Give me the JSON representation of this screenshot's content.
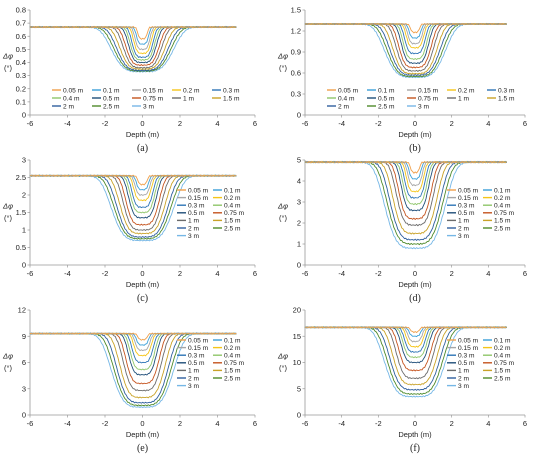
{
  "figure": {
    "series_names": [
      "0.05 m",
      "0.1 m",
      "0.15 m",
      "0.2 m",
      "0.3 m",
      "0.4 m",
      "0.5 m",
      "0.75 m",
      "1 m",
      "1.5 m",
      "2 m",
      "2.5 m",
      "3 m"
    ],
    "series_colors": [
      "#f0a04b",
      "#3aa0d8",
      "#a6a6a6",
      "#f5c518",
      "#2e75b6",
      "#8fc66a",
      "#1f4e79",
      "#c5541f",
      "#6b6b6b",
      "#c9a227",
      "#2f5f9e",
      "#4f8a2a",
      "#76b7e6"
    ],
    "half_widths_m": [
      0.28,
      0.36,
      0.44,
      0.52,
      0.62,
      0.72,
      0.82,
      0.98,
      1.12,
      1.32,
      1.5,
      1.66,
      1.82
    ]
  },
  "chart_data": [
    {
      "type": "line",
      "panel_label": "(a)",
      "xlabel": "Depth (m)",
      "ylabel": "Δφ",
      "yunit": "(°)",
      "xlim": [
        -6,
        6
      ],
      "ylim": [
        0,
        0.8
      ],
      "xticks": [
        "-6",
        "-4",
        "-2",
        "0",
        "2",
        "4",
        "6"
      ],
      "yticks": [
        "0",
        "0.1",
        "0.2",
        "0.3",
        "0.4",
        "0.5",
        "0.6",
        "0.7",
        "0.8"
      ],
      "x_range": [
        -6,
        5
      ],
      "baseline": 0.67,
      "minima": [
        0.58,
        0.54,
        0.5,
        0.47,
        0.44,
        0.42,
        0.4,
        0.38,
        0.36,
        0.35,
        0.34,
        0.335,
        0.33
      ],
      "legend_columns": 5,
      "legend_position": "lower-center"
    },
    {
      "type": "line",
      "panel_label": "(b)",
      "xlabel": "Depth (m)",
      "ylabel": "Δφ",
      "yunit": "(°)",
      "xlim": [
        -6,
        6
      ],
      "ylim": [
        0,
        1.5
      ],
      "xticks": [
        "-6",
        "-4",
        "-2",
        "0",
        "2",
        "4",
        "6"
      ],
      "yticks": [
        "0",
        "0.3",
        "0.6",
        "0.9",
        "1.2",
        "1.5"
      ],
      "x_range": [
        -6,
        5
      ],
      "baseline": 1.3,
      "minima": [
        1.18,
        1.1,
        1.02,
        0.96,
        0.88,
        0.8,
        0.74,
        0.68,
        0.63,
        0.59,
        0.57,
        0.55,
        0.54
      ],
      "legend_columns": 5,
      "legend_position": "lower-center"
    },
    {
      "type": "line",
      "panel_label": "(c)",
      "xlabel": "Depth (m)",
      "ylabel": "Δφ",
      "yunit": "(°)",
      "xlim": [
        -6,
        6
      ],
      "ylim": [
        0,
        3
      ],
      "xticks": [
        "-6",
        "-4",
        "-2",
        "0",
        "2",
        "4",
        "6"
      ],
      "yticks": [
        "0",
        "0.5",
        "1",
        "1.5",
        "2",
        "2.5",
        "3"
      ],
      "x_range": [
        -6,
        5
      ],
      "baseline": 2.55,
      "minima": [
        2.3,
        2.15,
        2.0,
        1.85,
        1.65,
        1.5,
        1.35,
        1.15,
        1.0,
        0.9,
        0.8,
        0.75,
        0.7
      ],
      "legend_columns": 2,
      "legend_position": "lower-right"
    },
    {
      "type": "line",
      "panel_label": "(d)",
      "xlabel": "Depth (m)",
      "ylabel": "Δφ",
      "yunit": "(°)",
      "xlim": [
        -6,
        6
      ],
      "ylim": [
        0,
        5
      ],
      "xticks": [
        "-6",
        "-4",
        "-2",
        "0",
        "2",
        "4",
        "6"
      ],
      "yticks": [
        "0",
        "1",
        "2",
        "3",
        "4",
        "5"
      ],
      "x_range": [
        -6,
        5
      ],
      "baseline": 4.9,
      "minima": [
        4.4,
        4.1,
        3.8,
        3.5,
        3.2,
        2.9,
        2.6,
        2.2,
        1.9,
        1.5,
        1.2,
        1.0,
        0.8
      ],
      "legend_columns": 2,
      "legend_position": "lower-right"
    },
    {
      "type": "line",
      "panel_label": "(e)",
      "xlabel": "Depth (m)",
      "ylabel": "Δφ",
      "yunit": "(°)",
      "xlim": [
        -6,
        6
      ],
      "ylim": [
        0,
        12
      ],
      "xticks": [
        "-6",
        "-4",
        "-2",
        "0",
        "2",
        "4",
        "6"
      ],
      "yticks": [
        "0",
        "3",
        "6",
        "9",
        "12"
      ],
      "x_range": [
        -6,
        5
      ],
      "baseline": 9.3,
      "minima": [
        8.6,
        8.0,
        7.4,
        6.8,
        6.0,
        5.2,
        4.6,
        3.6,
        2.8,
        2.0,
        1.4,
        1.1,
        0.9
      ],
      "legend_columns": 2,
      "legend_position": "lower-right"
    },
    {
      "type": "line",
      "panel_label": "(f)",
      "xlabel": "Depth (m)",
      "ylabel": "Δφ",
      "yunit": "(°)",
      "xlim": [
        -6,
        6
      ],
      "ylim": [
        0,
        20
      ],
      "xticks": [
        "-6",
        "-4",
        "-2",
        "0",
        "2",
        "4",
        "6"
      ],
      "yticks": [
        "0",
        "5",
        "10",
        "15",
        "20"
      ],
      "x_range": [
        -6,
        5
      ],
      "baseline": 16.7,
      "minima": [
        15.8,
        15.0,
        14.0,
        13.0,
        12.0,
        11.0,
        10.0,
        8.5,
        7.0,
        5.8,
        4.8,
        4.0,
        3.5
      ],
      "legend_columns": 2,
      "legend_position": "lower-right"
    }
  ]
}
